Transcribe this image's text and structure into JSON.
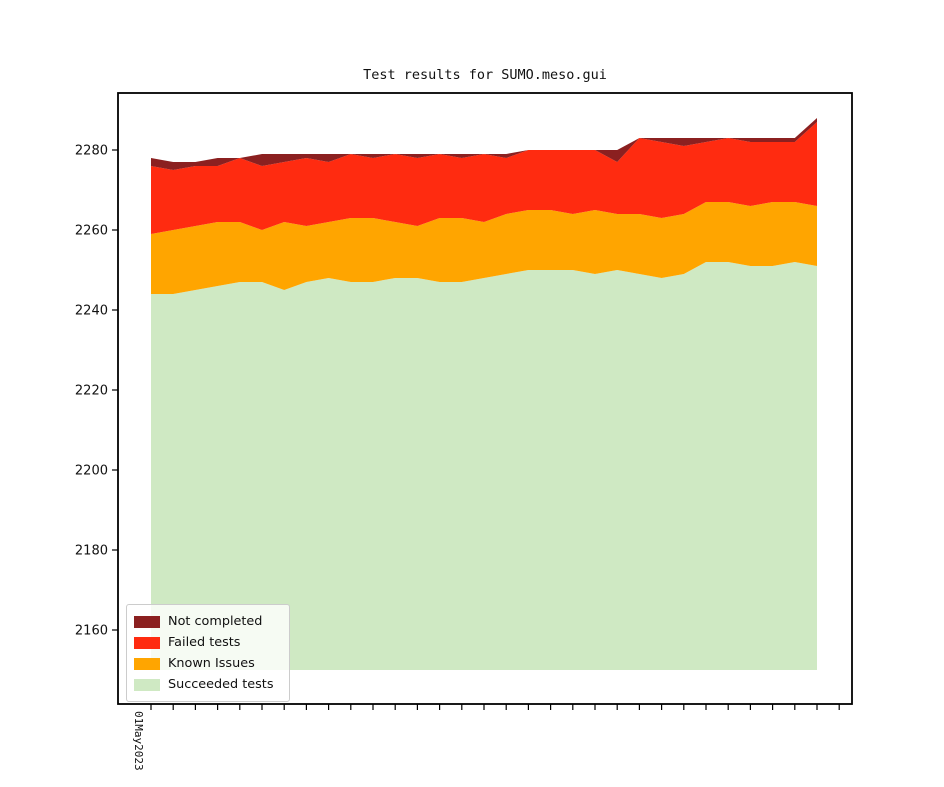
{
  "title": "Test results for SUMO.meso.gui",
  "x_axis": {
    "first_tick_label": "01May2023",
    "num_ticks": 32
  },
  "chart_data": {
    "type": "area",
    "stacked": true,
    "title": "Test results for SUMO.meso.gui",
    "xlabel": "",
    "ylabel": "",
    "x_tick_label": "01May2023",
    "num_points": 31,
    "num_x_ticks": 32,
    "baseline": 2150,
    "ylim": [
      2141.5,
      2294.25
    ],
    "yticks": [
      2160,
      2180,
      2200,
      2220,
      2240,
      2260,
      2280
    ],
    "grid": false,
    "legend_position": "lower left",
    "series": [
      {
        "name": "Succeeded tests",
        "color": "#CFE9C3",
        "mode": "absolute",
        "values": [
          2244,
          2244,
          2245,
          2246,
          2247,
          2247,
          2245,
          2247,
          2248,
          2247,
          2247,
          2248,
          2248,
          2247,
          2247,
          2248,
          2249,
          2250,
          2250,
          2250,
          2249,
          2250,
          2249,
          2248,
          2249,
          2252,
          2252,
          2251,
          2251,
          2252,
          2251
        ]
      },
      {
        "name": "Known Issues",
        "color": "#FFA500",
        "mode": "increment",
        "values": [
          15,
          16,
          16,
          16,
          15,
          13,
          17,
          14,
          14,
          16,
          16,
          14,
          13,
          16,
          16,
          14,
          15,
          15,
          15,
          14,
          16,
          14,
          15,
          15,
          15,
          15,
          15,
          15,
          16,
          15,
          15
        ]
      },
      {
        "name": "Failed tests",
        "color": "#FF2B10",
        "mode": "increment",
        "values": [
          17,
          15,
          15,
          14,
          16,
          16,
          15,
          17,
          15,
          16,
          15,
          17,
          17,
          16,
          15,
          17,
          14,
          15,
          15,
          16,
          15,
          13,
          19,
          19,
          17,
          15,
          16,
          16,
          15,
          15,
          21
        ]
      },
      {
        "name": "Not completed",
        "color": "#8B2020",
        "mode": "increment",
        "values": [
          2,
          2,
          1,
          2,
          0,
          3,
          2,
          1,
          2,
          0,
          1,
          0,
          1,
          0,
          1,
          0,
          1,
          0,
          0,
          0,
          0,
          3,
          0,
          1,
          2,
          1,
          0,
          1,
          1,
          1,
          1
        ]
      }
    ]
  }
}
